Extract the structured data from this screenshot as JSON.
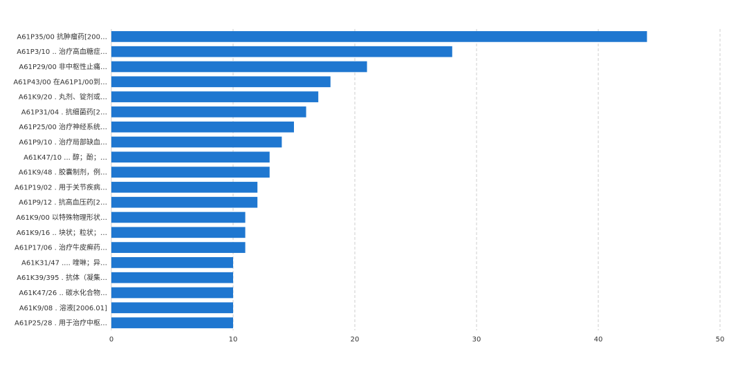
{
  "chart_data": {
    "type": "bar",
    "orientation": "horizontal",
    "title": "",
    "xlabel": "",
    "ylabel": "",
    "xlim": [
      0,
      50
    ],
    "x_ticks": [
      "0",
      "10",
      "20",
      "30",
      "40",
      "50"
    ],
    "grid": true,
    "bar_color": "#1f77d0",
    "categories": [
      "A61P35/00 抗肿瘤药[200…",
      "A61P3/10 .. 治疗高血糖症…",
      "A61P29/00 非中枢性止痛…",
      "A61P43/00 在A61P1/00到…",
      "A61K9/20 . 丸剂、锭剂或…",
      "A61P31/04 . 抗细菌药[2…",
      "A61P25/00 治疗神经系统…",
      "A61P9/10 . 治疗局部缺血…",
      "A61K47/10 ... 醇；酚；…",
      "A61K9/48 . 胶囊制剂，例…",
      "A61P19/02 . 用于关节疾病…",
      "A61P9/12 . 抗高血压药[2…",
      "A61K9/00 以特殊物理形状…",
      "A61K9/16 .. 块状；粒状；…",
      "A61P17/06 . 治疗牛皮癣药…",
      "A61K31/47 .... 喹啉；异…",
      "A61K39/395 . 抗体（凝集…",
      "A61K47/26 .. 碳水化合物…",
      "A61K9/08 . 溶液[2006.01]",
      "A61P25/28 . 用于治疗中枢…"
    ],
    "values": [
      44,
      28,
      21,
      18,
      17,
      16,
      15,
      14,
      13,
      13,
      12,
      12,
      11,
      11,
      11,
      10,
      10,
      10,
      10,
      10
    ]
  }
}
